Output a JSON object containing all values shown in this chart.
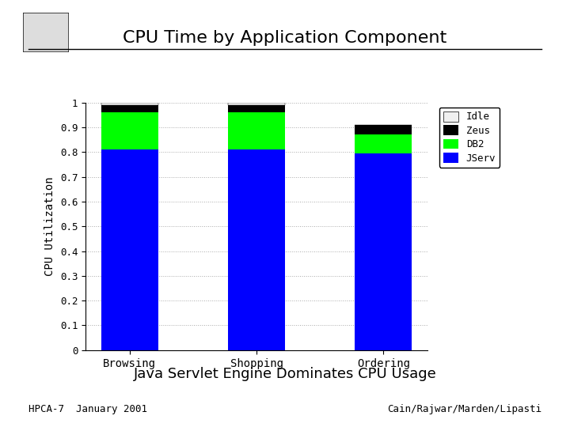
{
  "categories": [
    "Browsing",
    "Shopping",
    "Ordering"
  ],
  "JServ": [
    0.81,
    0.81,
    0.795
  ],
  "DB2": [
    0.15,
    0.15,
    0.075
  ],
  "Zeus": [
    0.03,
    0.03,
    0.04
  ],
  "Idle": [
    0.01,
    0.01,
    0.0
  ],
  "colors": {
    "JServ": "#0000FF",
    "DB2": "#00FF00",
    "Zeus": "#000000",
    "Idle": "#F0F0F0"
  },
  "ylabel": "CPU Utilization",
  "ylim": [
    0,
    1.0
  ],
  "yticks": [
    0,
    0.1,
    0.2,
    0.3,
    0.4,
    0.5,
    0.6,
    0.7,
    0.8,
    0.9,
    1
  ],
  "title": "CPU Time by Application Component",
  "subtitle": "Java Servlet Engine Dominates CPU Usage",
  "footer_left": "HPCA-7  January 2001",
  "footer_right": "Cain/Rajwar/Marden/Lipasti",
  "legend_labels": [
    "Idle",
    "Zeus",
    "DB2",
    "JServ"
  ],
  "bg_color": "#FFFFFF"
}
